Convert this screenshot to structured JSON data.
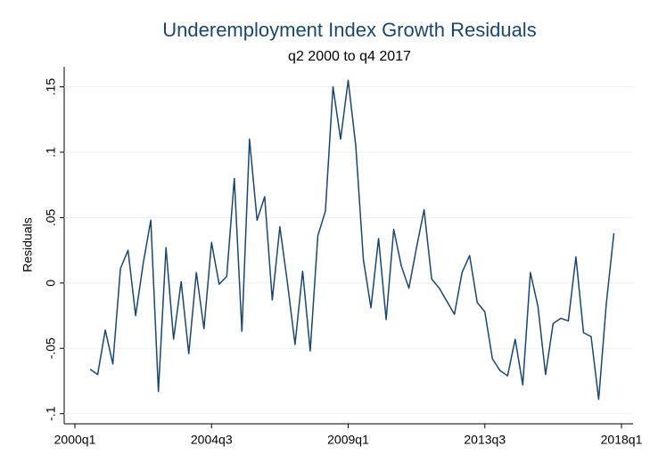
{
  "chart_data": {
    "type": "line",
    "title": "Underemployment Index Growth Residuals",
    "subtitle": "q2 2000 to q4 2017",
    "ylabel": "Residuals",
    "color": "#1a476f",
    "grid": true,
    "x": [
      "2000q3",
      "2000q4",
      "2001q1",
      "2001q2",
      "2001q3",
      "2001q4",
      "2002q1",
      "2002q2",
      "2002q3",
      "2002q4",
      "2003q1",
      "2003q2",
      "2003q3",
      "2003q4",
      "2004q1",
      "2004q2",
      "2004q3",
      "2004q4",
      "2005q1",
      "2005q2",
      "2005q3",
      "2005q4",
      "2006q1",
      "2006q2",
      "2006q3",
      "2006q4",
      "2007q1",
      "2007q2",
      "2007q3",
      "2007q4",
      "2008q1",
      "2008q2",
      "2008q3",
      "2008q4",
      "2009q1",
      "2009q2",
      "2009q3",
      "2009q4",
      "2010q1",
      "2010q2",
      "2010q3",
      "2010q4",
      "2011q1",
      "2011q2",
      "2011q3",
      "2011q4",
      "2012q1",
      "2012q2",
      "2012q3",
      "2012q4",
      "2013q1",
      "2013q2",
      "2013q3",
      "2013q4",
      "2014q1",
      "2014q2",
      "2014q3",
      "2014q4",
      "2015q1",
      "2015q2",
      "2015q3",
      "2015q4",
      "2016q1",
      "2016q2",
      "2016q3",
      "2016q4",
      "2017q1",
      "2017q2",
      "2017q3",
      "2017q4"
    ],
    "values": [
      -0.066,
      -0.07,
      -0.036,
      -0.062,
      0.011,
      0.025,
      -0.025,
      0.015,
      0.048,
      -0.083,
      0.027,
      -0.043,
      0.001,
      -0.054,
      0.008,
      -0.035,
      0.031,
      -0.001,
      0.005,
      0.08,
      -0.037,
      0.11,
      0.048,
      0.066,
      -0.013,
      0.043,
      0,
      -0.047,
      0.009,
      -0.052,
      0.036,
      0.055,
      0.15,
      0.11,
      0.155,
      0.105,
      0.018,
      -0.019,
      0.034,
      -0.028,
      0.041,
      0.013,
      -0.004,
      0.027,
      0.056,
      0.003,
      -0.004,
      -0.014,
      -0.024,
      0.008,
      0.021,
      -0.015,
      -0.022,
      -0.058,
      -0.067,
      -0.071,
      -0.043,
      -0.078,
      0.008,
      -0.018,
      -0.07,
      -0.031,
      -0.027,
      -0.029,
      0.02,
      -0.038,
      -0.041,
      -0.089,
      -0.016,
      0.038
    ],
    "xlim": [
      "2000q1",
      "2018q1"
    ],
    "xticks": [
      "2000q1",
      "2004q3",
      "2009q1",
      "2013q3",
      "2018q1"
    ],
    "ylim": [
      -0.105,
      0.165
    ],
    "yticks": [
      {
        "value": -0.1,
        "label": "-.1"
      },
      {
        "value": -0.05,
        "label": "-.05"
      },
      0,
      {
        "value": 0.05,
        "label": ".05"
      },
      {
        "value": 0.1,
        "label": ".1"
      },
      {
        "value": 0.15,
        "label": ".15"
      }
    ]
  }
}
